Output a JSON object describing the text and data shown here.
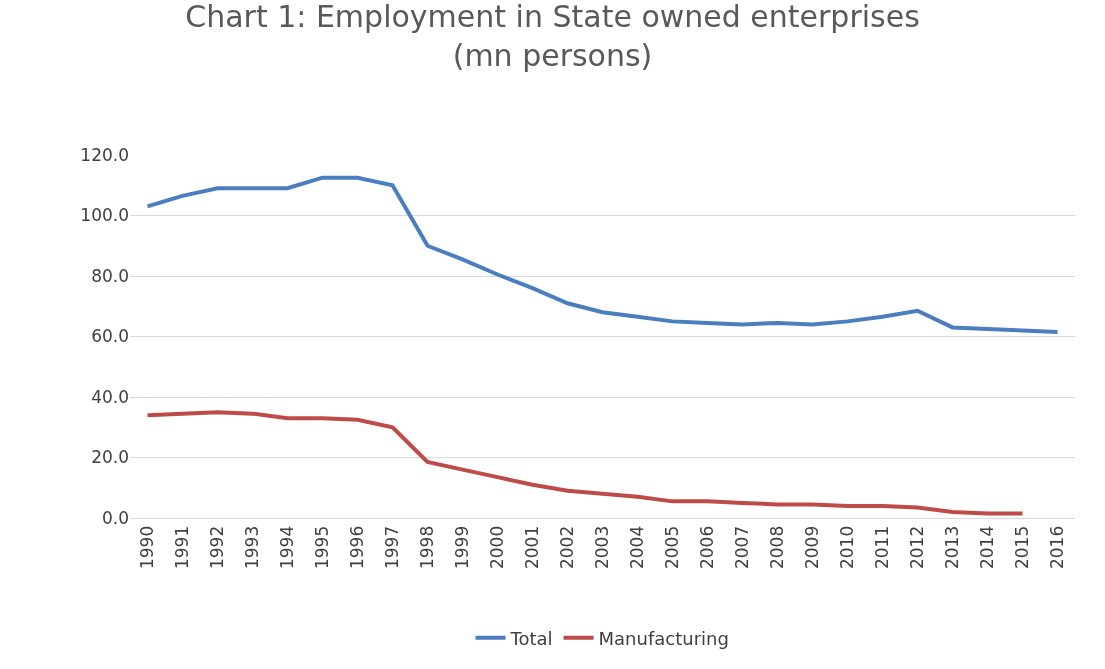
{
  "chart_data": {
    "type": "line",
    "title": "Chart 1: Employment in State owned enterprises\n(mn persons)",
    "categories": [
      "1990",
      "1991",
      "1992",
      "1993",
      "1994",
      "1995",
      "1996",
      "1997",
      "1998",
      "1999",
      "2000",
      "2001",
      "2002",
      "2003",
      "2004",
      "2005",
      "2006",
      "2007",
      "2008",
      "2009",
      "2010",
      "2011",
      "2012",
      "2013",
      "2014",
      "2015",
      "2016"
    ],
    "series": [
      {
        "name": "Total",
        "color": "#4a7ebf",
        "values": [
          103,
          106.5,
          109,
          109,
          109,
          112.5,
          112.5,
          110,
          90,
          85.5,
          80.5,
          76,
          71,
          68,
          66.5,
          65,
          64.5,
          64,
          64.5,
          64,
          65,
          66.5,
          68.5,
          63,
          62.5,
          62,
          61.5
        ]
      },
      {
        "name": "Manufacturing",
        "color": "#be4b48",
        "values": [
          34,
          34.5,
          35,
          34.5,
          33,
          33,
          32.5,
          30,
          18.5,
          16,
          13.5,
          11,
          9,
          8,
          7,
          5.5,
          5.5,
          5,
          4.5,
          4.5,
          4,
          4,
          3.5,
          2,
          1.5,
          1.5,
          null
        ]
      }
    ],
    "ylim": [
      0,
      120
    ],
    "yticks": [
      {
        "value": 0,
        "label": "0.0"
      },
      {
        "value": 20,
        "label": "20.0"
      },
      {
        "value": 40,
        "label": "40.0"
      },
      {
        "value": 60,
        "label": "60.0"
      },
      {
        "value": 80,
        "label": "80.0"
      },
      {
        "value": 100,
        "label": "100.0"
      },
      {
        "value": 120,
        "label": "120.0"
      }
    ],
    "grid": "y",
    "legend": "bottom",
    "marker": "none",
    "line_style": "solid"
  }
}
